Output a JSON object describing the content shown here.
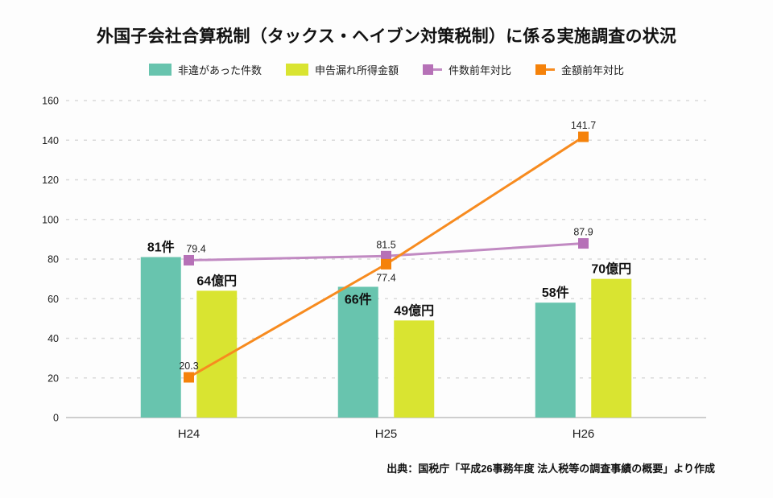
{
  "footer": {
    "source": "出典：国税庁「平成26事務年度 法人税等の調査事績の概要」より作成"
  },
  "colors": {
    "background": "#fdfdfd",
    "grid": "#d9d9d9",
    "axis": "#b3b3b3",
    "text": "#1a1a1a"
  },
  "chart_data": {
    "type": "combo",
    "title": "外国子会社合算税制（タックス・ヘイブン対策税制）に係る実施調査の状況",
    "categories": [
      "H24",
      "H25",
      "H26"
    ],
    "series": [
      {
        "name": "非違があった件数",
        "type": "bar",
        "color": "#68c4ae",
        "values": [
          81,
          66,
          58
        ],
        "labels": [
          "81件",
          "66件",
          "58件"
        ],
        "label_placement": [
          "above",
          "inside",
          "above"
        ]
      },
      {
        "name": "申告漏れ所得金額",
        "type": "bar",
        "color": "#d9e431",
        "values": [
          64,
          49,
          70
        ],
        "labels": [
          "64億円",
          "49億円",
          "70億円"
        ],
        "label_placement": [
          "above",
          "above",
          "above"
        ]
      },
      {
        "name": "件数前年対比",
        "type": "line",
        "color": "#c18ac2",
        "marker_color": "#b671b7",
        "values": [
          79.4,
          81.5,
          87.9
        ],
        "labels": [
          "79.4",
          "81.5",
          "87.9"
        ],
        "label_placement": [
          "above-right",
          "above",
          "above"
        ]
      },
      {
        "name": "金額前年対比",
        "type": "line",
        "color": "#f78b1f",
        "marker_color": "#f5820a",
        "values": [
          20.3,
          77.4,
          141.7
        ],
        "labels": [
          "20.3",
          "77.4",
          "141.7"
        ],
        "label_placement": [
          "above",
          "below",
          "above"
        ]
      }
    ],
    "xlabel": "",
    "ylabel": "",
    "ylim": [
      0,
      160
    ],
    "ytick_step": 20,
    "grid": true,
    "legend_position": "top"
  }
}
